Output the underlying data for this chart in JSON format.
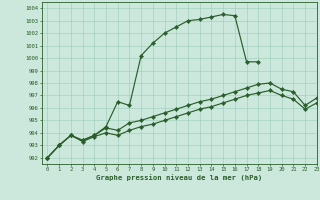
{
  "title": "Graphe pression niveau de la mer (hPa)",
  "xlim": [
    -0.5,
    23
  ],
  "ylim": [
    991.5,
    1004.5
  ],
  "yticks": [
    992,
    993,
    994,
    995,
    996,
    997,
    998,
    999,
    1000,
    1001,
    1002,
    1003,
    1004
  ],
  "xticks": [
    0,
    1,
    2,
    3,
    4,
    5,
    6,
    7,
    8,
    9,
    10,
    11,
    12,
    13,
    14,
    15,
    16,
    17,
    18,
    19,
    20,
    21,
    22,
    23
  ],
  "background_color": "#cce8dc",
  "grid_color": "#99ccbb",
  "line_color": "#2a5e2a",
  "figsize": [
    3.2,
    2.0
  ],
  "dpi": 100,
  "line1_x": [
    0,
    1,
    2,
    3,
    4,
    5,
    6,
    7,
    8,
    9,
    10,
    11,
    12,
    13,
    14,
    15,
    16,
    17,
    18
  ],
  "line1_y": [
    992.0,
    993.0,
    993.8,
    993.4,
    993.8,
    994.5,
    996.5,
    996.2,
    1000.2,
    1001.2,
    1002.0,
    1002.5,
    1003.0,
    1003.1,
    1003.3,
    1003.5,
    1003.4,
    999.7,
    999.7
  ],
  "line2_x": [
    0,
    1,
    2,
    3,
    4,
    5,
    6,
    7,
    8,
    9,
    10,
    11,
    12,
    13,
    14,
    15,
    16,
    17,
    18,
    19,
    20,
    21,
    22,
    23
  ],
  "line2_y": [
    992.0,
    993.0,
    993.8,
    993.4,
    993.8,
    994.4,
    994.2,
    994.8,
    995.0,
    995.3,
    995.6,
    995.9,
    996.2,
    996.5,
    996.7,
    997.0,
    997.3,
    997.6,
    997.9,
    998.0,
    997.5,
    997.3,
    996.2,
    996.8
  ],
  "line3_x": [
    0,
    1,
    2,
    3,
    4,
    5,
    6,
    7,
    8,
    9,
    10,
    11,
    12,
    13,
    14,
    15,
    16,
    17,
    18,
    19,
    20,
    21,
    22,
    23
  ],
  "line3_y": [
    992.0,
    993.0,
    993.8,
    993.3,
    993.7,
    994.0,
    993.8,
    994.2,
    994.5,
    994.7,
    995.0,
    995.3,
    995.6,
    995.9,
    996.1,
    996.4,
    996.7,
    997.0,
    997.2,
    997.4,
    997.0,
    996.7,
    995.9,
    996.4
  ]
}
